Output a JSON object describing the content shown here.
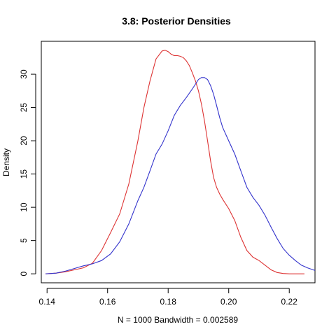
{
  "chart_data": {
    "type": "line",
    "title": "3.8: Posterior Densities",
    "xlabel": "N = 1000   Bandwidth = 0.002589",
    "ylabel": "Density",
    "xlim": [
      0.1381,
      0.2285
    ],
    "ylim": [
      -1.35,
      34.95
    ],
    "x_ticks": [
      0.14,
      0.16,
      0.18,
      0.2,
      0.22
    ],
    "x_tick_labels": [
      "0.14",
      "0.16",
      "0.18",
      "0.20",
      "0.22"
    ],
    "y_ticks": [
      0,
      5,
      10,
      15,
      20,
      25,
      30
    ],
    "y_tick_labels": [
      "0",
      "5",
      "10",
      "15",
      "20",
      "25",
      "30"
    ],
    "grid": false,
    "series": [
      {
        "color": "#dd3333",
        "x": [
          0.1395,
          0.143,
          0.146,
          0.149,
          0.152,
          0.155,
          0.158,
          0.161,
          0.164,
          0.167,
          0.17,
          0.172,
          0.174,
          0.176,
          0.178,
          0.179,
          0.18,
          0.181,
          0.182,
          0.183,
          0.184,
          0.185,
          0.186,
          0.187,
          0.188,
          0.189,
          0.19,
          0.191,
          0.192,
          0.193,
          0.194,
          0.195,
          0.196,
          0.197,
          0.198,
          0.2,
          0.202,
          0.204,
          0.206,
          0.208,
          0.21,
          0.212,
          0.214,
          0.216,
          0.218,
          0.22,
          0.222,
          0.224,
          0.225
        ],
        "y": [
          0.0,
          0.1,
          0.3,
          0.6,
          0.9,
          1.6,
          3.5,
          6.2,
          9.0,
          13.5,
          20.0,
          25.0,
          29.0,
          32.3,
          33.5,
          33.6,
          33.4,
          33.0,
          32.8,
          32.8,
          32.7,
          32.5,
          32.0,
          31.3,
          30.2,
          29.0,
          27.5,
          25.5,
          23.0,
          20.0,
          17.0,
          14.5,
          13.0,
          12.0,
          11.2,
          9.8,
          8.0,
          5.5,
          3.5,
          2.5,
          2.0,
          1.3,
          0.6,
          0.2,
          0.05,
          0.0,
          0.0,
          0.0,
          0.0
        ]
      },
      {
        "color": "#3333cc",
        "x": [
          0.1395,
          0.143,
          0.146,
          0.149,
          0.152,
          0.155,
          0.158,
          0.161,
          0.164,
          0.167,
          0.17,
          0.172,
          0.174,
          0.176,
          0.178,
          0.18,
          0.182,
          0.184,
          0.186,
          0.188,
          0.19,
          0.191,
          0.192,
          0.193,
          0.194,
          0.195,
          0.196,
          0.197,
          0.198,
          0.2,
          0.202,
          0.204,
          0.206,
          0.208,
          0.21,
          0.212,
          0.214,
          0.216,
          0.218,
          0.22,
          0.222,
          0.224,
          0.226,
          0.2285
        ],
        "y": [
          0.0,
          0.1,
          0.4,
          0.8,
          1.2,
          1.5,
          2.0,
          3.0,
          4.8,
          7.5,
          11.0,
          13.0,
          15.5,
          18.0,
          19.5,
          21.5,
          23.8,
          25.3,
          26.5,
          27.8,
          29.2,
          29.5,
          29.5,
          29.2,
          28.3,
          27.0,
          25.3,
          23.5,
          22.0,
          20.0,
          18.0,
          15.5,
          13.0,
          11.5,
          10.3,
          8.8,
          7.0,
          5.3,
          3.8,
          2.8,
          2.0,
          1.3,
          0.9,
          0.5
        ]
      }
    ]
  }
}
